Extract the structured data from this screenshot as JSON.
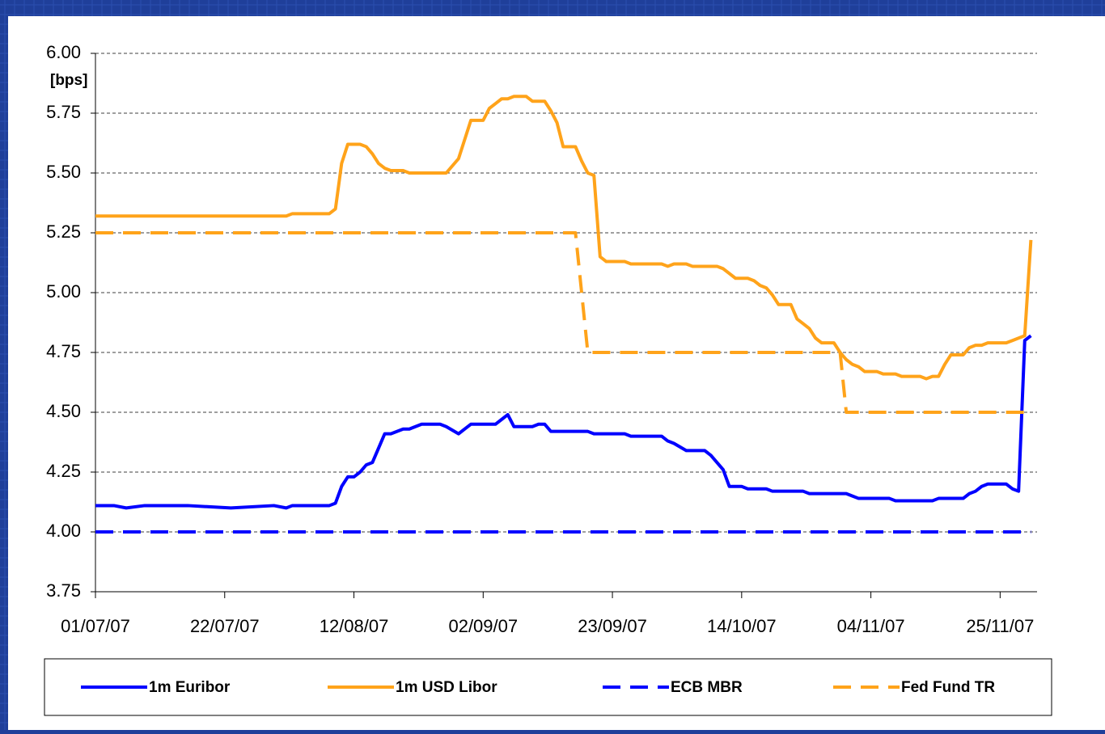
{
  "chart_data": {
    "type": "line",
    "y_unit_label": "[bps]",
    "x": [
      "01/07/07",
      "04/07/07",
      "06/07/07",
      "09/07/07",
      "16/07/07",
      "23/07/07",
      "30/07/07",
      "01/08/07",
      "02/08/07",
      "08/08/07",
      "09/08/07",
      "10/08/07",
      "11/08/07",
      "12/08/07",
      "13/08/07",
      "14/08/07",
      "15/08/07",
      "16/08/07",
      "17/08/07",
      "18/08/07",
      "20/08/07",
      "21/08/07",
      "23/08/07",
      "24/08/07",
      "26/08/07",
      "27/08/07",
      "29/08/07",
      "30/08/07",
      "31/08/07",
      "02/09/07",
      "03/09/07",
      "04/09/07",
      "05/09/07",
      "06/09/07",
      "07/09/07",
      "09/09/07",
      "10/09/07",
      "11/09/07",
      "12/09/07",
      "13/09/07",
      "14/09/07",
      "15/09/07",
      "17/09/07",
      "18/09/07",
      "19/09/07",
      "20/09/07",
      "21/09/07",
      "22/09/07",
      "25/09/07",
      "26/09/07",
      "01/10/07",
      "02/10/07",
      "03/10/07",
      "05/10/07",
      "06/10/07",
      "08/10/07",
      "09/10/07",
      "10/10/07",
      "11/10/07",
      "12/10/07",
      "13/10/07",
      "14/10/07",
      "15/10/07",
      "16/10/07",
      "17/10/07",
      "18/10/07",
      "19/10/07",
      "20/10/07",
      "22/10/07",
      "23/10/07",
      "24/10/07",
      "25/10/07",
      "26/10/07",
      "27/10/07",
      "29/10/07",
      "30/10/07",
      "31/10/07",
      "01/11/07",
      "02/11/07",
      "03/11/07",
      "05/11/07",
      "06/11/07",
      "07/11/07",
      "08/11/07",
      "09/11/07",
      "12/11/07",
      "13/11/07",
      "14/11/07",
      "15/11/07",
      "16/11/07",
      "17/11/07",
      "19/11/07",
      "20/11/07",
      "21/11/07",
      "22/11/07",
      "23/11/07",
      "26/11/07",
      "27/11/07",
      "28/11/07",
      "29/11/07",
      "30/11/07"
    ],
    "series": [
      {
        "name": "1m Euribor",
        "color": "#0000ff",
        "dash": false,
        "values": [
          4.11,
          4.11,
          4.1,
          4.11,
          4.11,
          4.1,
          4.11,
          4.1,
          4.11,
          4.11,
          4.12,
          4.19,
          4.23,
          4.23,
          4.25,
          4.28,
          4.29,
          4.35,
          4.41,
          4.41,
          4.43,
          4.43,
          4.45,
          4.45,
          4.45,
          4.44,
          4.41,
          4.43,
          4.45,
          4.45,
          4.45,
          4.45,
          4.47,
          4.49,
          4.44,
          4.44,
          4.44,
          4.45,
          4.45,
          4.42,
          4.42,
          4.42,
          4.42,
          4.42,
          4.42,
          4.41,
          4.41,
          4.41,
          4.41,
          4.4,
          4.4,
          4.38,
          4.37,
          4.34,
          4.34,
          4.34,
          4.32,
          4.29,
          4.26,
          4.19,
          4.19,
          4.19,
          4.18,
          4.18,
          4.18,
          4.18,
          4.17,
          4.17,
          4.17,
          4.17,
          4.17,
          4.16,
          4.16,
          4.16,
          4.16,
          4.16,
          4.16,
          4.15,
          4.14,
          4.14,
          4.14,
          4.14,
          4.14,
          4.13,
          4.13,
          4.13,
          4.13,
          4.13,
          4.14,
          4.14,
          4.14,
          4.14,
          4.16,
          4.17,
          4.19,
          4.2,
          4.2,
          4.18,
          4.17,
          4.8,
          4.82
        ]
      },
      {
        "name": "1m USD Libor",
        "color": "#ffa31a",
        "dash": false,
        "values": [
          5.32,
          5.32,
          5.32,
          5.32,
          5.32,
          5.32,
          5.32,
          5.32,
          5.33,
          5.33,
          5.35,
          5.54,
          5.62,
          5.62,
          5.62,
          5.61,
          5.58,
          5.54,
          5.52,
          5.51,
          5.51,
          5.5,
          5.5,
          5.5,
          5.5,
          5.5,
          5.56,
          5.64,
          5.72,
          5.72,
          5.77,
          5.79,
          5.81,
          5.81,
          5.82,
          5.82,
          5.8,
          5.8,
          5.8,
          5.76,
          5.71,
          5.61,
          5.61,
          5.55,
          5.5,
          5.49,
          5.15,
          5.13,
          5.13,
          5.12,
          5.12,
          5.11,
          5.12,
          5.12,
          5.11,
          5.11,
          5.11,
          5.11,
          5.1,
          5.08,
          5.06,
          5.06,
          5.06,
          5.05,
          5.03,
          5.02,
          4.99,
          4.95,
          4.95,
          4.89,
          4.87,
          4.85,
          4.81,
          4.79,
          4.79,
          4.75,
          4.72,
          4.7,
          4.69,
          4.67,
          4.67,
          4.66,
          4.66,
          4.66,
          4.65,
          4.65,
          4.64,
          4.65,
          4.65,
          4.7,
          4.74,
          4.74,
          4.77,
          4.78,
          4.78,
          4.79,
          4.79,
          4.8,
          4.81,
          4.82,
          5.22
        ]
      },
      {
        "name": "ECB MBR",
        "color": "#0000ff",
        "dash": true,
        "x": [
          "01/07/07",
          "30/11/07"
        ],
        "values": [
          4.0,
          4.0
        ]
      },
      {
        "name": "Fed Fund TR",
        "color": "#ffa31a",
        "dash": true,
        "x": [
          "01/07/07",
          "17/09/07",
          "19/09/07",
          "30/10/07",
          "31/10/07",
          "30/11/07"
        ],
        "values": [
          5.25,
          5.25,
          4.75,
          4.75,
          4.5,
          4.5
        ]
      }
    ],
    "xlim": [
      "01/07/07",
      "01/12/07"
    ],
    "xticks": [
      "01/07/07",
      "22/07/07",
      "12/08/07",
      "02/09/07",
      "23/09/07",
      "14/10/07",
      "04/11/07",
      "25/11/07"
    ],
    "ylim": [
      3.75,
      6.0
    ],
    "yticks": [
      {
        "value": 3.75,
        "label": "3.75"
      },
      {
        "value": 4.0,
        "label": "4.00"
      },
      {
        "value": 4.25,
        "label": "4.25"
      },
      {
        "value": 4.5,
        "label": "4.50"
      },
      {
        "value": 4.75,
        "label": "4.75"
      },
      {
        "value": 5.0,
        "label": "5.00"
      },
      {
        "value": 5.25,
        "label": "5.25"
      },
      {
        "value": 5.5,
        "label": "5.50"
      },
      {
        "value": 5.75,
        "label": "5.75"
      },
      {
        "value": 6.0,
        "label": "6.00"
      }
    ],
    "grid": true,
    "legend": "bottom"
  }
}
